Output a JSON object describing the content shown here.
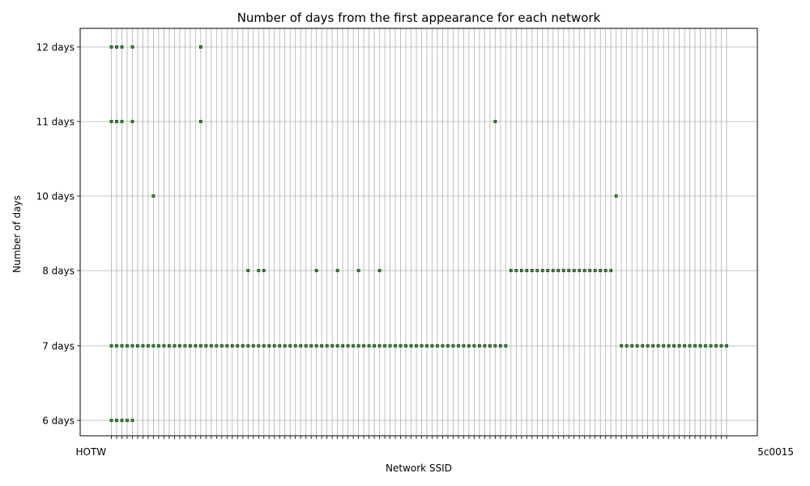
{
  "chart_data": {
    "type": "scatter",
    "title": "Number of days from the first appearance for each network",
    "xlabel": "Network SSID",
    "ylabel": "Number of days",
    "y_categories": [
      "6 days",
      "7 days",
      "8 days",
      "10 days",
      "11 days",
      "12 days"
    ],
    "x_tick_labels_legible": [
      "HOTW",
      "5c0015"
    ],
    "x_category_count": 118,
    "grid": true,
    "marker_color": "#2ca02c",
    "marker_edge_color": "#000000",
    "points": {
      "6 days": [
        0,
        1,
        2,
        3,
        4
      ],
      "7 days": [
        0,
        1,
        2,
        3,
        4,
        5,
        6,
        7,
        8,
        9,
        10,
        11,
        12,
        13,
        14,
        15,
        16,
        17,
        18,
        19,
        20,
        21,
        22,
        23,
        24,
        25,
        26,
        27,
        28,
        29,
        30,
        31,
        32,
        33,
        34,
        35,
        36,
        37,
        38,
        39,
        40,
        41,
        42,
        43,
        44,
        45,
        46,
        47,
        48,
        49,
        50,
        51,
        52,
        53,
        54,
        55,
        56,
        57,
        58,
        59,
        60,
        61,
        62,
        63,
        64,
        65,
        66,
        67,
        68,
        69,
        70,
        71,
        72,
        73,
        74,
        75,
        97,
        98,
        99,
        100,
        101,
        102,
        103,
        104,
        105,
        106,
        107,
        108,
        109,
        110,
        111,
        112,
        113,
        114,
        115,
        116,
        117
      ],
      "8 days": [
        26,
        28,
        29,
        39,
        43,
        47,
        51,
        76,
        77,
        78,
        79,
        80,
        81,
        82,
        83,
        84,
        85,
        86,
        87,
        88,
        89,
        90,
        91,
        92,
        93,
        94,
        95
      ],
      "10 days": [
        8,
        96
      ],
      "11 days": [
        0,
        1,
        2,
        4,
        17,
        73
      ],
      "12 days": [
        0,
        1,
        2,
        4,
        17
      ]
    }
  }
}
